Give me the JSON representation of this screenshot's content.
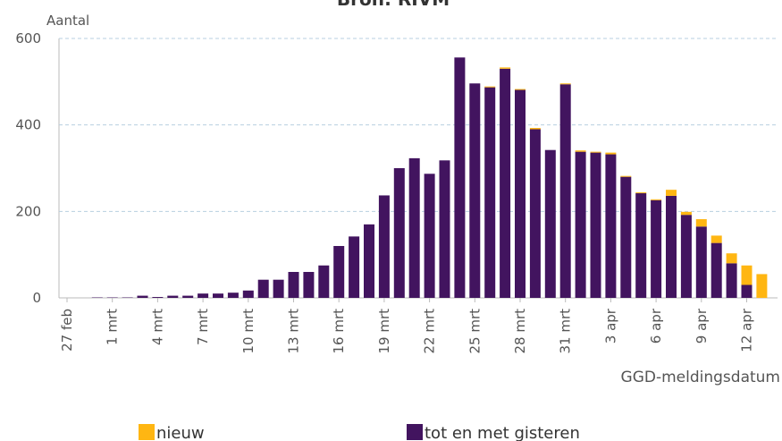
{
  "chart_data": {
    "type": "bar",
    "stacked": true,
    "title": "Bron: RIVM",
    "y_label": "Aantal",
    "x_label": "GGD-meldingsdatum",
    "categories": [
      "27 feb",
      null,
      null,
      "1 mrt",
      null,
      null,
      "4 mrt",
      null,
      null,
      "7 mrt",
      null,
      null,
      "10 mrt",
      null,
      null,
      "13 mrt",
      null,
      null,
      "16 mrt",
      null,
      null,
      "19 mrt",
      null,
      null,
      "22 mrt",
      null,
      null,
      "25 mrt",
      null,
      null,
      "28 mrt",
      null,
      null,
      "31 mrt",
      null,
      null,
      "3 apr",
      null,
      null,
      "6 apr",
      null,
      null,
      "9 apr",
      null,
      null,
      "12 apr",
      null
    ],
    "series": [
      {
        "name": "nieuw",
        "color": "#ffb612",
        "values": [
          0,
          0,
          0,
          0,
          0,
          0,
          0,
          0,
          0,
          0,
          0,
          0,
          0,
          0,
          0,
          0,
          0,
          0,
          0,
          0,
          0,
          0,
          0,
          0,
          0,
          0,
          0,
          0,
          2,
          3,
          2,
          3,
          0,
          2,
          3,
          2,
          4,
          2,
          2,
          2,
          14,
          7,
          17,
          17,
          23,
          45,
          55
        ]
      },
      {
        "name": "tot en met gisteren",
        "color": "#42145f",
        "values": [
          0,
          0,
          1,
          1,
          1,
          5,
          2,
          5,
          5,
          10,
          10,
          12,
          17,
          42,
          42,
          60,
          60,
          75,
          120,
          142,
          170,
          237,
          300,
          323,
          287,
          318,
          556,
          496,
          487,
          530,
          481,
          390,
          342,
          494,
          338,
          336,
          332,
          280,
          242,
          226,
          236,
          192,
          165,
          127,
          80,
          30,
          0
        ]
      }
    ],
    "ylim": [
      0,
      600
    ],
    "yticks": [
      0,
      200,
      400,
      600
    ],
    "grid": true,
    "legend": "bottom"
  }
}
